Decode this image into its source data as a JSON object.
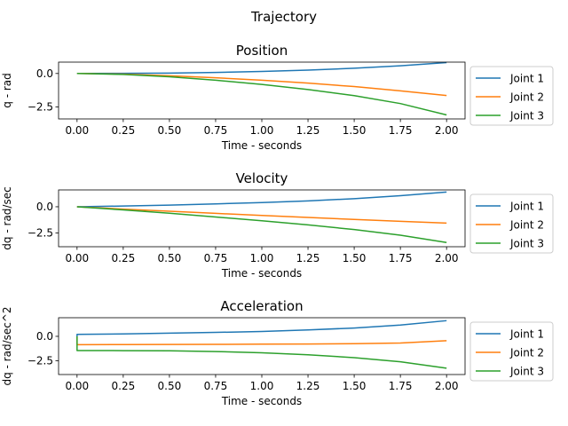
{
  "suptitle": "Trajectory",
  "colors": {
    "joint1": "#1f77b4",
    "joint2": "#ff7f0e",
    "joint3": "#2ca02c"
  },
  "chart_data": [
    {
      "type": "line",
      "title": "Position",
      "xlabel": "Time - seconds",
      "ylabel": "q - rad",
      "xlim": [
        -0.1,
        2.1
      ],
      "ylim": [
        -3.4,
        0.85
      ],
      "xticks": [
        "0.00",
        "0.25",
        "0.50",
        "0.75",
        "1.00",
        "1.25",
        "1.50",
        "1.75",
        "2.00"
      ],
      "yticks": [
        "0.0",
        "−2.5"
      ],
      "grid": false,
      "legend": "outside-right",
      "x": [
        0,
        0.25,
        0.5,
        0.75,
        1.0,
        1.25,
        1.5,
        1.75,
        2.0
      ],
      "series": [
        {
          "name": "Joint 1",
          "color": "#1f77b4",
          "values": [
            0,
            0.01,
            0.03,
            0.08,
            0.15,
            0.25,
            0.39,
            0.58,
            0.82
          ]
        },
        {
          "name": "Joint 2",
          "color": "#ff7f0e",
          "values": [
            0,
            -0.05,
            -0.17,
            -0.32,
            -0.5,
            -0.72,
            -0.98,
            -1.3,
            -1.65
          ]
        },
        {
          "name": "Joint 3",
          "color": "#2ca02c",
          "values": [
            0,
            -0.07,
            -0.25,
            -0.5,
            -0.82,
            -1.2,
            -1.66,
            -2.25,
            -3.1
          ]
        }
      ]
    },
    {
      "type": "line",
      "title": "Velocity",
      "xlabel": "Time - seconds",
      "ylabel": "dq - rad/sec",
      "xlim": [
        -0.1,
        2.1
      ],
      "ylim": [
        -3.8,
        1.6
      ],
      "xticks": [
        "0.00",
        "0.25",
        "0.50",
        "0.75",
        "1.00",
        "1.25",
        "1.50",
        "1.75",
        "2.00"
      ],
      "yticks": [
        "0.0",
        "−2.5"
      ],
      "grid": false,
      "legend": "outside-right",
      "x": [
        0,
        0.25,
        0.5,
        0.75,
        1.0,
        1.25,
        1.5,
        1.75,
        2.0
      ],
      "series": [
        {
          "name": "Joint 1",
          "color": "#1f77b4",
          "values": [
            0,
            0.07,
            0.16,
            0.27,
            0.4,
            0.56,
            0.77,
            1.05,
            1.4
          ]
        },
        {
          "name": "Joint 2",
          "color": "#ff7f0e",
          "values": [
            0,
            -0.22,
            -0.43,
            -0.63,
            -0.83,
            -1.02,
            -1.2,
            -1.38,
            -1.55
          ]
        },
        {
          "name": "Joint 3",
          "color": "#2ca02c",
          "values": [
            0,
            -0.3,
            -0.62,
            -0.97,
            -1.33,
            -1.72,
            -2.17,
            -2.7,
            -3.4
          ]
        }
      ]
    },
    {
      "type": "line",
      "title": "Acceleration",
      "xlabel": "Time - seconds",
      "ylabel": "dq - rad/sec^2",
      "xlim": [
        -0.1,
        2.1
      ],
      "ylim": [
        -3.9,
        1.9
      ],
      "xticks": [
        "0.00",
        "0.25",
        "0.50",
        "0.75",
        "1.00",
        "1.25",
        "1.50",
        "1.75",
        "2.00"
      ],
      "yticks": [
        "0.0",
        "−2.5"
      ],
      "grid": false,
      "legend": "outside-right",
      "x": [
        0,
        0,
        0.25,
        0.5,
        0.75,
        1.0,
        1.25,
        1.5,
        1.75,
        2.0
      ],
      "series": [
        {
          "name": "Joint 1",
          "color": "#1f77b4",
          "values": [
            0,
            0.2,
            0.25,
            0.32,
            0.4,
            0.5,
            0.65,
            0.85,
            1.15,
            1.6
          ]
        },
        {
          "name": "Joint 2",
          "color": "#ff7f0e",
          "values": [
            0,
            -0.85,
            -0.84,
            -0.83,
            -0.82,
            -0.8,
            -0.78,
            -0.75,
            -0.68,
            -0.45
          ]
        },
        {
          "name": "Joint 3",
          "color": "#2ca02c",
          "values": [
            0,
            -1.45,
            -1.46,
            -1.48,
            -1.55,
            -1.68,
            -1.88,
            -2.18,
            -2.6,
            -3.25
          ]
        }
      ]
    }
  ]
}
